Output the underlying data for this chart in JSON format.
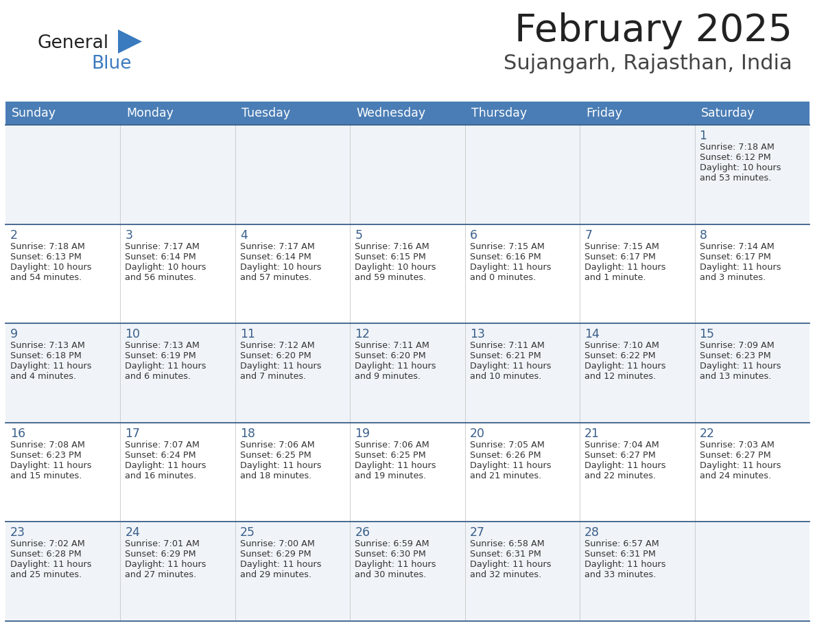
{
  "title": "February 2025",
  "subtitle": "Sujangarh, Rajasthan, India",
  "header_color": "#4a7db5",
  "header_text_color": "#ffffff",
  "border_color": "#3a5f8a",
  "day_number_color": "#3a5f8a",
  "text_color": "#333333",
  "row_colors": [
    "#f0f4f8",
    "#ffffff",
    "#f0f4f8",
    "#ffffff",
    "#f0f4f8"
  ],
  "weekdays": [
    "Sunday",
    "Monday",
    "Tuesday",
    "Wednesday",
    "Thursday",
    "Friday",
    "Saturday"
  ],
  "logo_general_color": "#222222",
  "logo_blue_color": "#3a7abf",
  "title_color": "#222222",
  "subtitle_color": "#444444",
  "calendar": [
    [
      null,
      null,
      null,
      null,
      null,
      null,
      {
        "day": "1",
        "sunrise": "7:18 AM",
        "sunset": "6:12 PM",
        "daylight": "10 hours\nand 53 minutes."
      }
    ],
    [
      {
        "day": "2",
        "sunrise": "7:18 AM",
        "sunset": "6:13 PM",
        "daylight": "10 hours\nand 54 minutes."
      },
      {
        "day": "3",
        "sunrise": "7:17 AM",
        "sunset": "6:14 PM",
        "daylight": "10 hours\nand 56 minutes."
      },
      {
        "day": "4",
        "sunrise": "7:17 AM",
        "sunset": "6:14 PM",
        "daylight": "10 hours\nand 57 minutes."
      },
      {
        "day": "5",
        "sunrise": "7:16 AM",
        "sunset": "6:15 PM",
        "daylight": "10 hours\nand 59 minutes."
      },
      {
        "day": "6",
        "sunrise": "7:15 AM",
        "sunset": "6:16 PM",
        "daylight": "11 hours\nand 0 minutes."
      },
      {
        "day": "7",
        "sunrise": "7:15 AM",
        "sunset": "6:17 PM",
        "daylight": "11 hours\nand 1 minute."
      },
      {
        "day": "8",
        "sunrise": "7:14 AM",
        "sunset": "6:17 PM",
        "daylight": "11 hours\nand 3 minutes."
      }
    ],
    [
      {
        "day": "9",
        "sunrise": "7:13 AM",
        "sunset": "6:18 PM",
        "daylight": "11 hours\nand 4 minutes."
      },
      {
        "day": "10",
        "sunrise": "7:13 AM",
        "sunset": "6:19 PM",
        "daylight": "11 hours\nand 6 minutes."
      },
      {
        "day": "11",
        "sunrise": "7:12 AM",
        "sunset": "6:20 PM",
        "daylight": "11 hours\nand 7 minutes."
      },
      {
        "day": "12",
        "sunrise": "7:11 AM",
        "sunset": "6:20 PM",
        "daylight": "11 hours\nand 9 minutes."
      },
      {
        "day": "13",
        "sunrise": "7:11 AM",
        "sunset": "6:21 PM",
        "daylight": "11 hours\nand 10 minutes."
      },
      {
        "day": "14",
        "sunrise": "7:10 AM",
        "sunset": "6:22 PM",
        "daylight": "11 hours\nand 12 minutes."
      },
      {
        "day": "15",
        "sunrise": "7:09 AM",
        "sunset": "6:23 PM",
        "daylight": "11 hours\nand 13 minutes."
      }
    ],
    [
      {
        "day": "16",
        "sunrise": "7:08 AM",
        "sunset": "6:23 PM",
        "daylight": "11 hours\nand 15 minutes."
      },
      {
        "day": "17",
        "sunrise": "7:07 AM",
        "sunset": "6:24 PM",
        "daylight": "11 hours\nand 16 minutes."
      },
      {
        "day": "18",
        "sunrise": "7:06 AM",
        "sunset": "6:25 PM",
        "daylight": "11 hours\nand 18 minutes."
      },
      {
        "day": "19",
        "sunrise": "7:06 AM",
        "sunset": "6:25 PM",
        "daylight": "11 hours\nand 19 minutes."
      },
      {
        "day": "20",
        "sunrise": "7:05 AM",
        "sunset": "6:26 PM",
        "daylight": "11 hours\nand 21 minutes."
      },
      {
        "day": "21",
        "sunrise": "7:04 AM",
        "sunset": "6:27 PM",
        "daylight": "11 hours\nand 22 minutes."
      },
      {
        "day": "22",
        "sunrise": "7:03 AM",
        "sunset": "6:27 PM",
        "daylight": "11 hours\nand 24 minutes."
      }
    ],
    [
      {
        "day": "23",
        "sunrise": "7:02 AM",
        "sunset": "6:28 PM",
        "daylight": "11 hours\nand 25 minutes."
      },
      {
        "day": "24",
        "sunrise": "7:01 AM",
        "sunset": "6:29 PM",
        "daylight": "11 hours\nand 27 minutes."
      },
      {
        "day": "25",
        "sunrise": "7:00 AM",
        "sunset": "6:29 PM",
        "daylight": "11 hours\nand 29 minutes."
      },
      {
        "day": "26",
        "sunrise": "6:59 AM",
        "sunset": "6:30 PM",
        "daylight": "11 hours\nand 30 minutes."
      },
      {
        "day": "27",
        "sunrise": "6:58 AM",
        "sunset": "6:31 PM",
        "daylight": "11 hours\nand 32 minutes."
      },
      {
        "day": "28",
        "sunrise": "6:57 AM",
        "sunset": "6:31 PM",
        "daylight": "11 hours\nand 33 minutes."
      },
      null
    ]
  ]
}
